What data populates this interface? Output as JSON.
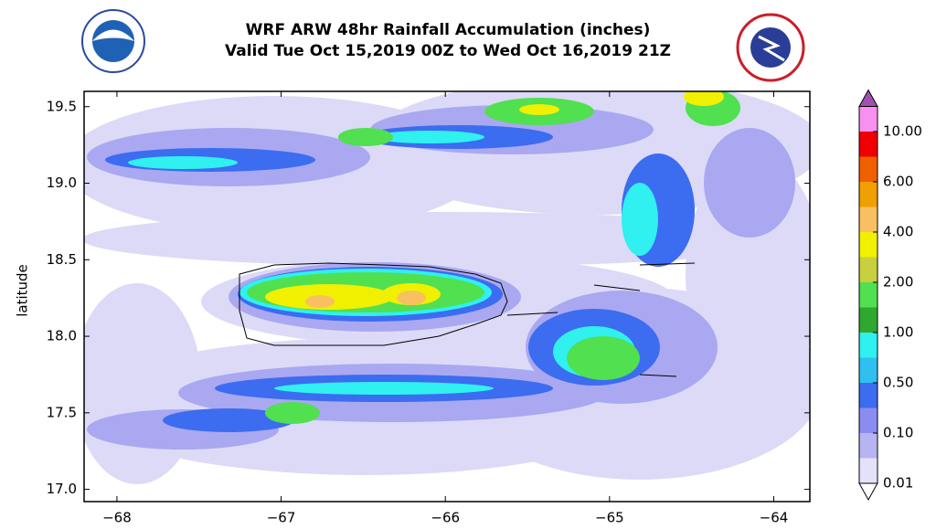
{
  "chart_data": {
    "type": "contour_map",
    "title": "WRF ARW 48hr Rainfall Accumulation (inches)",
    "subtitle": "Valid Tue Oct 15,2019 00Z to Wed Oct 16,2019 21Z",
    "ylabel": "latitude",
    "xlim": [
      -68.2,
      -63.78
    ],
    "ylim": [
      16.92,
      19.6
    ],
    "xticks": [
      {
        "value": -68,
        "label": "−68"
      },
      {
        "value": -67,
        "label": "−67"
      },
      {
        "value": -66,
        "label": "−66"
      },
      {
        "value": -65,
        "label": "−65"
      },
      {
        "value": -64,
        "label": "−64"
      }
    ],
    "yticks": [
      {
        "value": 17,
        "label": "17.0"
      },
      17.5,
      {
        "value": 18,
        "label": "18.0"
      },
      18.5,
      {
        "value": 19,
        "label": "19.0"
      },
      19.5
    ],
    "colorbar": {
      "levels": [
        0.01,
        {
          "value": 0.1,
          "label": "0.10"
        },
        {
          "value": 0.5,
          "label": "0.50"
        },
        {
          "value": 1,
          "label": "1.00"
        },
        {
          "value": 2,
          "label": "2.00"
        },
        {
          "value": 4,
          "label": "4.00"
        },
        {
          "value": 6,
          "label": "6.00"
        },
        {
          "value": 10,
          "label": "10.00"
        }
      ],
      "colors": [
        "#e4e2fa",
        "#b8b4f2",
        "#8a8cf0",
        "#3c6cf0",
        "#30c0f0",
        "#30f0f0",
        "#30a830",
        "#50e050",
        "#c8d040",
        "#f0f000",
        "#f8c060",
        "#f0a000",
        "#f06000",
        "#f00000",
        "#f890f0"
      ],
      "over_color": "#a050b0",
      "under_color": "#ffffff"
    }
  }
}
